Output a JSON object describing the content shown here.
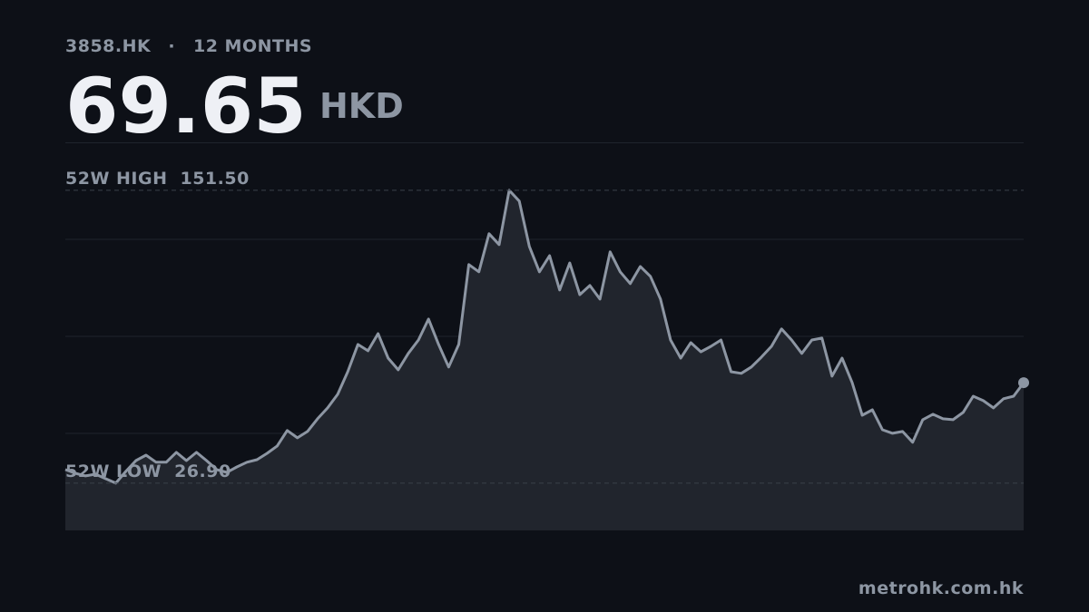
{
  "header": {
    "ticker": "3858.HK",
    "separator": "·",
    "period": "12 MONTHS",
    "price": "69.65",
    "currency": "HKD"
  },
  "chart_data": {
    "type": "line",
    "color": "#8d96a3",
    "fill": "#21252d",
    "values": [
      32.7,
      31.1,
      30.0,
      30.7,
      28.8,
      26.9,
      31.9,
      36.5,
      38.8,
      35.8,
      35.8,
      40.0,
      36.5,
      40.0,
      36.5,
      32.7,
      31.5,
      33.8,
      35.8,
      36.9,
      39.6,
      42.7,
      49.3,
      46.2,
      48.9,
      54.3,
      58.9,
      64.7,
      74.3,
      85.9,
      83.2,
      90.5,
      80.1,
      75.1,
      82.1,
      87.8,
      96.7,
      85.9,
      76.3,
      85.9,
      119.9,
      116.8,
      133.0,
      128.4,
      151.5,
      146.9,
      127.6,
      116.8,
      123.7,
      109.1,
      120.6,
      107.1,
      111.0,
      105.2,
      125.3,
      116.8,
      111.8,
      119.1,
      114.9,
      105.2,
      87.8,
      80.1,
      86.7,
      82.8,
      85.1,
      87.8,
      74.3,
      73.6,
      76.3,
      80.5,
      85.1,
      92.5,
      87.8,
      82.1,
      87.8,
      88.6,
      72.4,
      80.1,
      69.7,
      55.8,
      58.1,
      49.6,
      48.1,
      48.9,
      44.3,
      53.9,
      56.2,
      54.3,
      53.9,
      57.0,
      63.9,
      62.0,
      58.9,
      62.8,
      63.9,
      69.65
    ],
    "ylim": [
      6.8,
      171.9
    ],
    "grid": true,
    "annotations": [
      {
        "label": "52W HIGH",
        "value": 151.5,
        "value_label": "151.50"
      },
      {
        "label": "52W LOW",
        "value": 26.9,
        "value_label": "26.90"
      }
    ],
    "source": "metrohk.com.hk"
  }
}
